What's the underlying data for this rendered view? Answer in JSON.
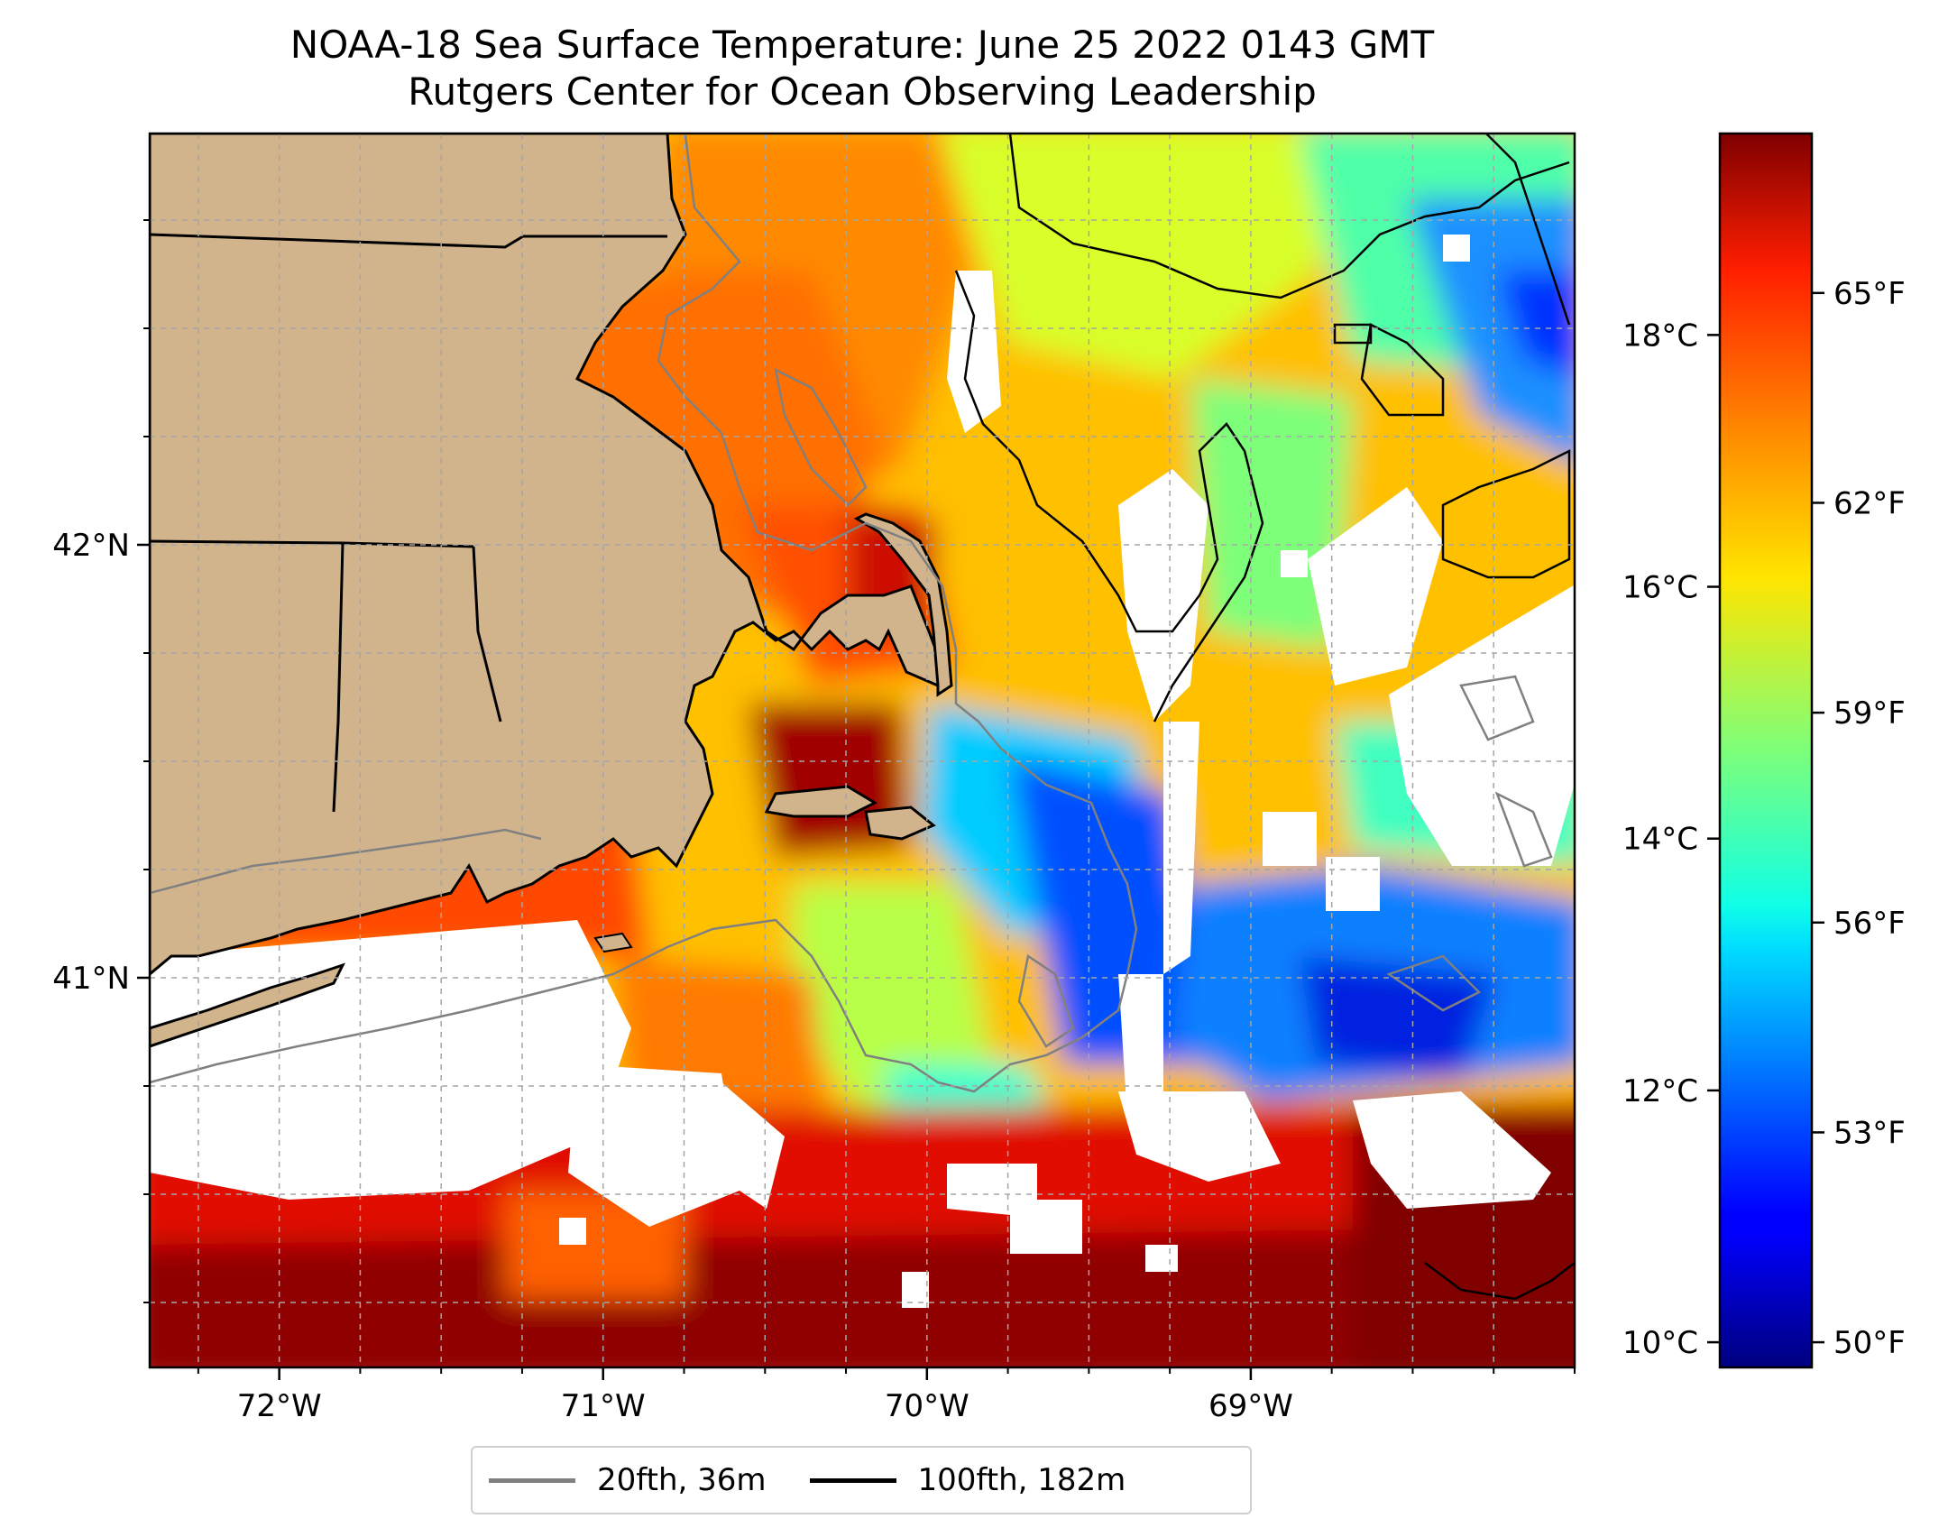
{
  "title": {
    "line1": "NOAA-18 Sea Surface Temperature: June 25 2022 0143 GMT",
    "line2": "Rutgers Center for Ocean Observing Leadership"
  },
  "map": {
    "lon_range": [
      -72.4,
      -68.0
    ],
    "lat_range": [
      40.1,
      42.95
    ],
    "lon_ticks": [
      {
        "value": -72,
        "label": "72°W"
      },
      {
        "value": -71,
        "label": "71°W"
      },
      {
        "value": -70,
        "label": "70°W"
      },
      {
        "value": -69,
        "label": "69°W"
      }
    ],
    "lat_ticks": [
      {
        "value": 42,
        "label": "42°N"
      },
      {
        "value": 41,
        "label": "41°N"
      }
    ],
    "grid": true,
    "land_color": "#d2b48c",
    "cloud_color": "#ffffff"
  },
  "colorbar": {
    "colormap": "jet",
    "celsius_range": [
      9.8,
      19.6
    ],
    "celsius_ticks": [
      {
        "value": 10,
        "label": "10°C"
      },
      {
        "value": 12,
        "label": "12°C"
      },
      {
        "value": 14,
        "label": "14°C"
      },
      {
        "value": 16,
        "label": "16°C"
      },
      {
        "value": 18,
        "label": "18°C"
      }
    ],
    "fahrenheit_ticks": [
      {
        "value": 50,
        "label": "50°F"
      },
      {
        "value": 53,
        "label": "53°F"
      },
      {
        "value": 56,
        "label": "56°F"
      },
      {
        "value": 59,
        "label": "59°F"
      },
      {
        "value": 62,
        "label": "62°F"
      },
      {
        "value": 65,
        "label": "65°F"
      }
    ]
  },
  "legend": {
    "items": [
      {
        "label": "20fth, 36m",
        "color": "#808080"
      },
      {
        "label": "100fth, 182m",
        "color": "#000000"
      }
    ]
  }
}
